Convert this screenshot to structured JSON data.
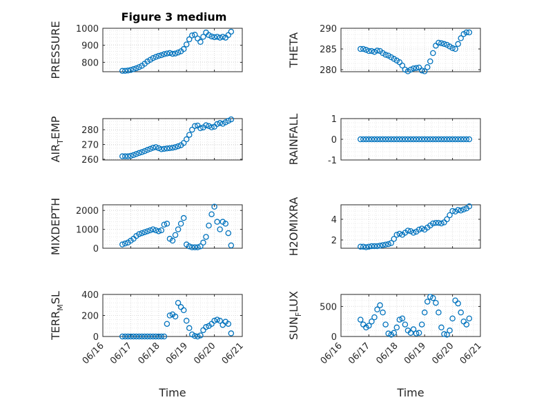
{
  "figure": {
    "title": "Figure 3 medium"
  },
  "style": {
    "marker_color": "#0072BD",
    "axis_color": "#262626",
    "marker": "open-circle",
    "grid": "on"
  },
  "chart_data": [
    {
      "id": "pressure",
      "type": "scatter",
      "ylabel": "PRESSURE",
      "yticks": [
        800,
        900,
        1000
      ],
      "ylim": [
        745,
        1000
      ],
      "xticks": [
        "06/16",
        "06/17",
        "06/18",
        "06/19",
        "06/20",
        "06/21"
      ],
      "xlim": [
        0,
        5
      ],
      "show_xtick_labels": false,
      "series": [
        {
          "x": [
            0.7,
            0.8,
            0.9,
            1.0,
            1.1,
            1.2,
            1.3,
            1.4,
            1.5,
            1.6,
            1.7,
            1.8,
            1.9,
            2.0,
            2.1,
            2.2,
            2.3,
            2.4,
            2.5,
            2.6,
            2.7,
            2.8,
            2.9,
            3.0,
            3.1,
            3.2,
            3.3,
            3.4,
            3.5,
            3.6,
            3.7,
            3.8,
            3.9,
            4.0,
            4.1,
            4.2,
            4.3,
            4.4,
            4.5,
            4.6
          ],
          "y": [
            750,
            750,
            752,
            755,
            760,
            765,
            772,
            780,
            792,
            805,
            815,
            825,
            832,
            838,
            842,
            848,
            852,
            855,
            850,
            852,
            858,
            865,
            878,
            905,
            935,
            958,
            962,
            940,
            920,
            950,
            975,
            960,
            952,
            948,
            950,
            945,
            950,
            945,
            960,
            980
          ]
        }
      ]
    },
    {
      "id": "theta",
      "type": "scatter",
      "ylabel": "THETA",
      "yticks": [
        280,
        285,
        290
      ],
      "ylim": [
        279.5,
        290
      ],
      "xticks": [
        "06/16",
        "06/17",
        "06/18",
        "06/19",
        "06/20",
        "06/21"
      ],
      "xlim": [
        0,
        5
      ],
      "show_xtick_labels": false,
      "series": [
        {
          "x": [
            0.7,
            0.8,
            0.9,
            1.0,
            1.1,
            1.2,
            1.3,
            1.4,
            1.5,
            1.6,
            1.7,
            1.8,
            1.9,
            2.0,
            2.1,
            2.2,
            2.3,
            2.4,
            2.5,
            2.6,
            2.7,
            2.8,
            2.9,
            3.0,
            3.1,
            3.2,
            3.3,
            3.4,
            3.5,
            3.6,
            3.7,
            3.8,
            3.9,
            4.0,
            4.1,
            4.2,
            4.3,
            4.4,
            4.5,
            4.6
          ],
          "y": [
            285,
            285,
            284.8,
            284.5,
            284.5,
            284.3,
            284.6,
            284.5,
            284.0,
            283.6,
            283.4,
            283.0,
            282.6,
            282.2,
            281.8,
            281.0,
            280.0,
            279.6,
            280.0,
            280.3,
            280.4,
            280.5,
            279.8,
            279.6,
            280.6,
            282.0,
            284.0,
            285.8,
            286.5,
            286.4,
            286.2,
            286.0,
            285.6,
            285.2,
            285.0,
            286.2,
            287.6,
            288.6,
            289.0,
            289.0
          ]
        }
      ]
    },
    {
      "id": "air_temp",
      "type": "scatter",
      "ylabel_main": "AIR",
      "ylabel_sub": "T",
      "ylabel_end": "EMP",
      "yticks": [
        260,
        270,
        280
      ],
      "ylim": [
        259.5,
        287.5
      ],
      "xticks": [
        "06/16",
        "06/17",
        "06/18",
        "06/19",
        "06/20",
        "06/21"
      ],
      "xlim": [
        0,
        5
      ],
      "show_xtick_labels": false,
      "series": [
        {
          "x": [
            0.7,
            0.8,
            0.9,
            1.0,
            1.1,
            1.2,
            1.3,
            1.4,
            1.5,
            1.6,
            1.7,
            1.8,
            1.9,
            2.0,
            2.1,
            2.2,
            2.3,
            2.4,
            2.5,
            2.6,
            2.7,
            2.8,
            2.9,
            3.0,
            3.1,
            3.2,
            3.3,
            3.4,
            3.5,
            3.6,
            3.7,
            3.8,
            3.9,
            4.0,
            4.1,
            4.2,
            4.3,
            4.4,
            4.5,
            4.6
          ],
          "y": [
            262,
            262,
            262,
            262.3,
            262.8,
            263.5,
            264.2,
            264.8,
            265.5,
            266.3,
            267.0,
            267.8,
            268.2,
            267.5,
            266.8,
            267.0,
            267.3,
            267.5,
            267.8,
            268.2,
            268.8,
            269.5,
            271.0,
            273.5,
            276.5,
            280.0,
            282.5,
            282.8,
            281.0,
            281.5,
            283.0,
            282.5,
            281.6,
            282.0,
            283.8,
            284.5,
            284.0,
            285.0,
            286.0,
            287.0
          ]
        }
      ]
    },
    {
      "id": "rainfall",
      "type": "scatter",
      "ylabel": "RAINFALL",
      "yticks": [
        -1,
        0,
        1
      ],
      "ylim": [
        -1,
        1
      ],
      "xticks": [
        "06/16",
        "06/17",
        "06/18",
        "06/19",
        "06/20",
        "06/21"
      ],
      "xlim": [
        0,
        5
      ],
      "show_xtick_labels": false,
      "series": [
        {
          "x": [
            0.7,
            0.8,
            0.9,
            1.0,
            1.1,
            1.2,
            1.3,
            1.4,
            1.5,
            1.6,
            1.7,
            1.8,
            1.9,
            2.0,
            2.1,
            2.2,
            2.3,
            2.4,
            2.5,
            2.6,
            2.7,
            2.8,
            2.9,
            3.0,
            3.1,
            3.2,
            3.3,
            3.4,
            3.5,
            3.6,
            3.7,
            3.8,
            3.9,
            4.0,
            4.1,
            4.2,
            4.3,
            4.4,
            4.5,
            4.6
          ],
          "y": [
            0,
            0,
            0,
            0,
            0,
            0,
            0,
            0,
            0,
            0,
            0,
            0,
            0,
            0,
            0,
            0,
            0,
            0,
            0,
            0,
            0,
            0,
            0,
            0,
            0,
            0,
            0,
            0,
            0,
            0,
            0,
            0,
            0,
            0,
            0,
            0,
            0,
            0,
            0,
            0
          ]
        }
      ]
    },
    {
      "id": "mixdepth",
      "type": "scatter",
      "ylabel": "MIXDEPTH",
      "yticks": [
        0,
        1000,
        2000
      ],
      "ylim": [
        0,
        2300
      ],
      "xticks": [
        "06/16",
        "06/17",
        "06/18",
        "06/19",
        "06/20",
        "06/21"
      ],
      "xlim": [
        0,
        5
      ],
      "show_xtick_labels": false,
      "series": [
        {
          "x": [
            0.7,
            0.8,
            0.9,
            1.0,
            1.1,
            1.2,
            1.3,
            1.4,
            1.5,
            1.6,
            1.7,
            1.8,
            1.9,
            2.0,
            2.1,
            2.2,
            2.3,
            2.4,
            2.5,
            2.6,
            2.7,
            2.8,
            2.9,
            3.0,
            3.1,
            3.2,
            3.3,
            3.4,
            3.5,
            3.6,
            3.7,
            3.8,
            3.9,
            4.0,
            4.1,
            4.2,
            4.3,
            4.4,
            4.5,
            4.6
          ],
          "y": [
            200,
            250,
            300,
            400,
            500,
            650,
            750,
            800,
            850,
            900,
            950,
            1000,
            950,
            900,
            950,
            1250,
            1300,
            500,
            400,
            700,
            1000,
            1300,
            1600,
            200,
            100,
            50,
            50,
            50,
            100,
            300,
            600,
            1200,
            1800,
            2200,
            1400,
            1000,
            1400,
            1300,
            800,
            150
          ]
        }
      ]
    },
    {
      "id": "h2omixra",
      "type": "scatter",
      "ylabel": "H2OMIXRA",
      "yticks": [
        2,
        4
      ],
      "ylim": [
        1.2,
        5.4
      ],
      "xticks": [
        "06/16",
        "06/17",
        "06/18",
        "06/19",
        "06/20",
        "06/21"
      ],
      "xlim": [
        0,
        5
      ],
      "show_xtick_labels": false,
      "series": [
        {
          "x": [
            0.7,
            0.8,
            0.9,
            1.0,
            1.1,
            1.2,
            1.3,
            1.4,
            1.5,
            1.6,
            1.7,
            1.8,
            1.9,
            2.0,
            2.1,
            2.2,
            2.3,
            2.4,
            2.5,
            2.6,
            2.7,
            2.8,
            2.9,
            3.0,
            3.1,
            3.2,
            3.3,
            3.4,
            3.5,
            3.6,
            3.7,
            3.8,
            3.9,
            4.0,
            4.1,
            4.2,
            4.3,
            4.4,
            4.5,
            4.6
          ],
          "y": [
            1.35,
            1.35,
            1.3,
            1.35,
            1.4,
            1.4,
            1.4,
            1.45,
            1.5,
            1.55,
            1.6,
            1.7,
            2.1,
            2.5,
            2.6,
            2.5,
            2.7,
            2.9,
            2.85,
            2.7,
            2.8,
            3.0,
            3.1,
            3.0,
            3.2,
            3.4,
            3.6,
            3.65,
            3.65,
            3.6,
            3.7,
            4.0,
            4.4,
            4.8,
            4.75,
            4.9,
            4.85,
            4.95,
            5.05,
            5.25
          ]
        }
      ]
    },
    {
      "id": "terr_msl",
      "type": "scatter",
      "ylabel_main": "TERR",
      "ylabel_sub": "M",
      "ylabel_end": "SL",
      "yticks": [
        0,
        200,
        400
      ],
      "ylim": [
        0,
        400
      ],
      "xticks": [
        "06/16",
        "06/17",
        "06/18",
        "06/19",
        "06/20",
        "06/21"
      ],
      "xlim": [
        0,
        5
      ],
      "show_xtick_labels": true,
      "xlabel": "Time",
      "series": [
        {
          "x": [
            0.7,
            0.8,
            0.9,
            1.0,
            1.1,
            1.2,
            1.3,
            1.4,
            1.5,
            1.6,
            1.7,
            1.8,
            1.9,
            2.0,
            2.1,
            2.2,
            2.3,
            2.4,
            2.5,
            2.6,
            2.7,
            2.8,
            2.9,
            3.0,
            3.1,
            3.2,
            3.3,
            3.4,
            3.5,
            3.6,
            3.7,
            3.8,
            3.9,
            4.0,
            4.1,
            4.2,
            4.3,
            4.4,
            4.5,
            4.6
          ],
          "y": [
            0,
            0,
            0,
            0,
            0,
            0,
            0,
            0,
            0,
            0,
            0,
            0,
            0,
            0,
            0,
            0,
            120,
            200,
            210,
            190,
            320,
            280,
            250,
            150,
            80,
            20,
            5,
            0,
            10,
            60,
            90,
            100,
            120,
            150,
            160,
            150,
            110,
            140,
            120,
            30
          ]
        }
      ]
    },
    {
      "id": "sun_flux",
      "type": "scatter",
      "ylabel_main": "SUN",
      "ylabel_sub": "F",
      "ylabel_end": "LUX",
      "yticks": [
        0,
        500
      ],
      "ylim": [
        0,
        700
      ],
      "xticks": [
        "06/16",
        "06/17",
        "06/18",
        "06/19",
        "06/20",
        "06/21"
      ],
      "xlim": [
        0,
        5
      ],
      "show_xtick_labels": true,
      "xlabel": "Time",
      "series": [
        {
          "x": [
            0.7,
            0.8,
            0.9,
            1.0,
            1.1,
            1.2,
            1.3,
            1.4,
            1.5,
            1.6,
            1.7,
            1.8,
            1.9,
            2.0,
            2.1,
            2.2,
            2.3,
            2.4,
            2.5,
            2.6,
            2.7,
            2.8,
            2.9,
            3.0,
            3.1,
            3.2,
            3.3,
            3.4,
            3.5,
            3.6,
            3.7,
            3.8,
            3.9,
            4.0,
            4.1,
            4.2,
            4.3,
            4.4,
            4.5,
            4.6
          ],
          "y": [
            280,
            200,
            150,
            180,
            250,
            320,
            450,
            520,
            400,
            200,
            50,
            30,
            60,
            150,
            280,
            300,
            200,
            100,
            60,
            120,
            50,
            60,
            200,
            400,
            580,
            660,
            640,
            560,
            400,
            150,
            40,
            30,
            100,
            300,
            600,
            550,
            400,
            250,
            200,
            300
          ]
        }
      ]
    }
  ]
}
